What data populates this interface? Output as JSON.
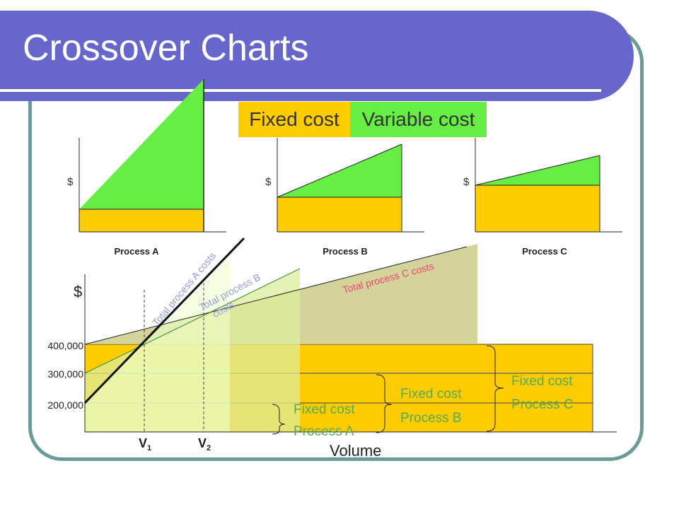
{
  "page": {
    "title": "Crossover Charts"
  },
  "legend": {
    "fixed": "Fixed cost",
    "variable": "Variable cost",
    "fixed_color": "#ffcc00",
    "variable_color": "#66ee44"
  },
  "chart_data": [
    {
      "type": "area",
      "title": "Process A",
      "ylabel": "$",
      "fixed_level": 0.35,
      "total_level_end": 1.85,
      "label": "Process A"
    },
    {
      "type": "area",
      "title": "Process B",
      "ylabel": "$",
      "fixed_level": 0.45,
      "total_level_end": 1.15,
      "label": "Process B"
    },
    {
      "type": "area",
      "title": "Process C",
      "ylabel": "$",
      "fixed_level": 0.62,
      "total_level_end": 1.0,
      "label": "Process C"
    },
    {
      "type": "line",
      "ylabel": "$",
      "xlabel": "Volume",
      "yticks": [
        {
          "value": 200000,
          "label": "200,000"
        },
        {
          "value": 300000,
          "label": "300,000"
        },
        {
          "value": 400000,
          "label": "400,000"
        }
      ],
      "series": [
        {
          "name": "Total process A costs",
          "fixed": 200000,
          "color": "#9999dd"
        },
        {
          "name": "Total process B costs",
          "fixed": 300000,
          "color": "#9999dd"
        },
        {
          "name": "Total process C costs",
          "fixed": 400000,
          "color": "#ee4477"
        }
      ],
      "fixed_labels": [
        {
          "line1": "Fixed cost",
          "line2": "Process A"
        },
        {
          "line1": "Fixed cost",
          "line2": "Process B"
        },
        {
          "line1": "Fixed cost",
          "line2": "Process C"
        }
      ],
      "markers": [
        {
          "label": "V",
          "sub": "1"
        },
        {
          "label": "V",
          "sub": "2"
        }
      ]
    }
  ]
}
